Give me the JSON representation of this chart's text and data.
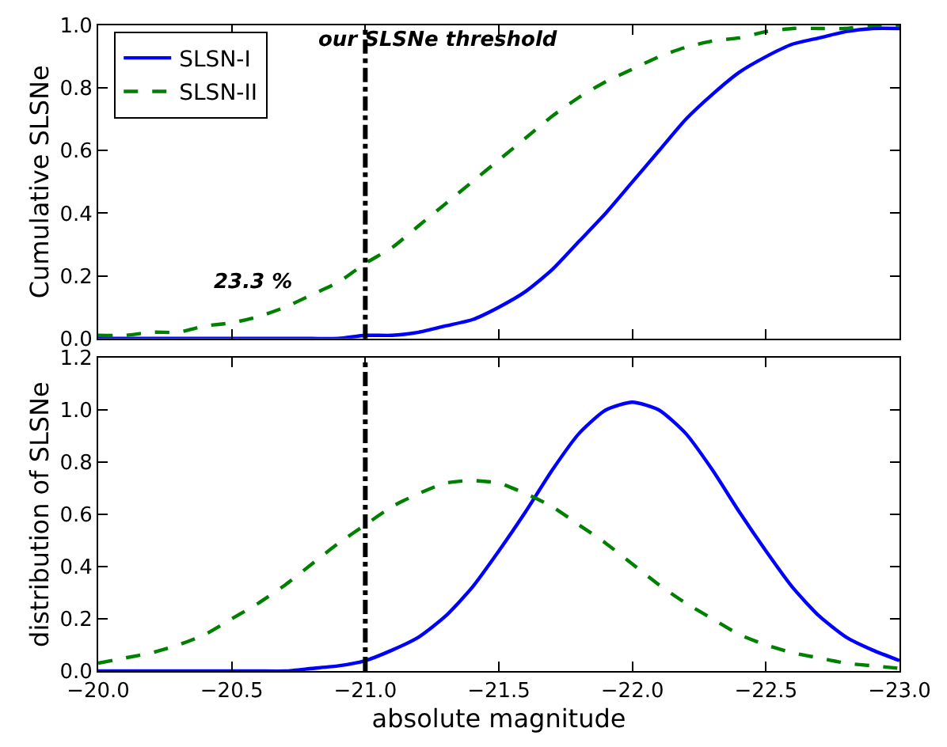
{
  "chart_data": [
    {
      "type": "line",
      "ylabel": "Cumulative SLSNe",
      "legend": "top left",
      "tick_labels": "y",
      "x": [
        -20.0,
        -20.1,
        -20.2,
        -20.3,
        -20.4,
        -20.5,
        -20.6,
        -20.7,
        -20.8,
        -20.9,
        -21.0,
        -21.1,
        -21.2,
        -21.3,
        -21.4,
        -21.5,
        -21.6,
        -21.7,
        -21.8,
        -21.9,
        -22.0,
        -22.1,
        -22.2,
        -22.3,
        -22.4,
        -22.5,
        -22.6,
        -22.7,
        -22.8,
        -22.9,
        -23.0
      ],
      "series": [
        {
          "name": "SLSN-I",
          "color": "#0000ff",
          "line_style": "solid",
          "values": [
            0,
            0,
            0,
            0,
            0,
            0,
            0,
            0,
            0,
            0,
            0.01,
            0.01,
            0.02,
            0.04,
            0.06,
            0.1,
            0.15,
            0.22,
            0.31,
            0.4,
            0.5,
            0.6,
            0.7,
            0.78,
            0.85,
            0.9,
            0.94,
            0.96,
            0.98,
            0.99,
            0.99
          ]
        },
        {
          "name": "SLSN-II",
          "color": "#008000",
          "line_style": "dashed",
          "values": [
            0.01,
            0.01,
            0.02,
            0.02,
            0.04,
            0.05,
            0.07,
            0.1,
            0.14,
            0.18,
            0.24,
            0.29,
            0.36,
            0.43,
            0.5,
            0.57,
            0.64,
            0.71,
            0.77,
            0.82,
            0.86,
            0.9,
            0.93,
            0.95,
            0.96,
            0.98,
            0.99,
            0.99,
            0.99,
            1.0,
            1.0
          ]
        }
      ],
      "xlim": [
        -20,
        -23
      ],
      "xticks": [
        {
          "value": -20,
          "label": null
        },
        {
          "value": -20.5,
          "label": null
        },
        {
          "value": -21,
          "label": null
        },
        {
          "value": -21.5,
          "label": null
        },
        {
          "value": -22,
          "label": null
        },
        {
          "value": -22.5,
          "label": null
        },
        {
          "value": -23,
          "label": null
        }
      ],
      "ylim": [
        0,
        1
      ],
      "yticks": [
        {
          "value": 0,
          "label": "0.0"
        },
        {
          "value": 0.2,
          "label": "0.2"
        },
        {
          "value": 0.4,
          "label": "0.4"
        },
        {
          "value": 0.6,
          "label": "0.6"
        },
        {
          "value": 0.8,
          "label": "0.8"
        },
        {
          "value": 1,
          "label": "1.0"
        }
      ],
      "ref_lines": [
        {
          "axis": "x",
          "value": -21,
          "label": "our SLSNe threshold",
          "color": "#000000",
          "line_style": "dashdot"
        }
      ],
      "annotations": [
        "23.3 %"
      ]
    },
    {
      "type": "line",
      "ylabel": "distribution of SLSNe",
      "xlabel": "absolute magnitude",
      "x": [
        -20.0,
        -20.1,
        -20.2,
        -20.3,
        -20.4,
        -20.5,
        -20.6,
        -20.7,
        -20.8,
        -20.9,
        -21.0,
        -21.1,
        -21.2,
        -21.3,
        -21.4,
        -21.5,
        -21.6,
        -21.7,
        -21.8,
        -21.9,
        -22.0,
        -22.1,
        -22.2,
        -22.3,
        -22.4,
        -22.5,
        -22.6,
        -22.7,
        -22.8,
        -22.9,
        -23.0
      ],
      "series": [
        {
          "color": "#0000ff",
          "line_style": "solid",
          "values": [
            0,
            0,
            0,
            0,
            0,
            0,
            0,
            0,
            0.01,
            0.02,
            0.04,
            0.08,
            0.13,
            0.21,
            0.32,
            0.46,
            0.61,
            0.77,
            0.91,
            1.0,
            1.03,
            1.0,
            0.91,
            0.77,
            0.61,
            0.46,
            0.32,
            0.21,
            0.13,
            0.08,
            0.04
          ]
        },
        {
          "color": "#008000",
          "line_style": "dashed",
          "values": [
            0.03,
            0.05,
            0.07,
            0.1,
            0.14,
            0.2,
            0.26,
            0.33,
            0.41,
            0.49,
            0.56,
            0.63,
            0.68,
            0.72,
            0.73,
            0.72,
            0.68,
            0.63,
            0.56,
            0.49,
            0.41,
            0.33,
            0.26,
            0.2,
            0.14,
            0.1,
            0.07,
            0.05,
            0.03,
            0.02,
            0.01
          ]
        }
      ],
      "xlim": [
        -20,
        -23
      ],
      "xticks": [
        {
          "value": -20,
          "label": "−20.0"
        },
        {
          "value": -20.5,
          "label": "−20.5"
        },
        {
          "value": -21,
          "label": "−21.0"
        },
        {
          "value": -21.5,
          "label": "−21.5"
        },
        {
          "value": -22,
          "label": "−22.0"
        },
        {
          "value": -22.5,
          "label": "−22.5"
        },
        {
          "value": -23,
          "label": "−23.0"
        }
      ],
      "ylim": [
        0,
        1.2
      ],
      "yticks": [
        {
          "value": 0,
          "label": "0.0"
        },
        {
          "value": 0.2,
          "label": "0.2"
        },
        {
          "value": 0.4,
          "label": "0.4"
        },
        {
          "value": 0.6,
          "label": "0.6"
        },
        {
          "value": 0.8,
          "label": "0.8"
        },
        {
          "value": 1,
          "label": "1.0"
        },
        {
          "value": 1.2,
          "label": "1.2"
        }
      ],
      "ref_lines": [
        {
          "axis": "x",
          "value": -21,
          "color": "#000000",
          "line_style": "dashdot"
        }
      ]
    }
  ]
}
